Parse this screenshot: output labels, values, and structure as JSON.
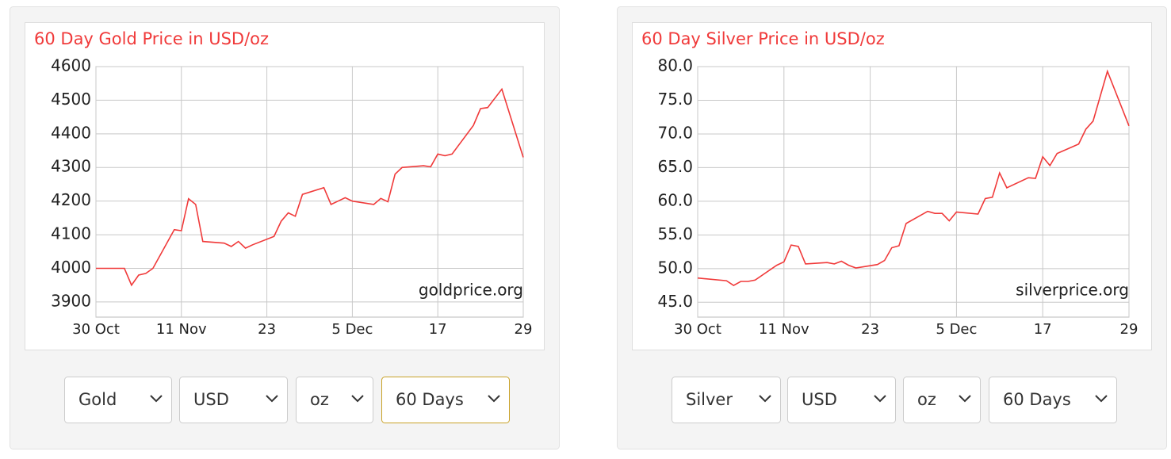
{
  "chart_data": [
    {
      "type": "line",
      "title": "60 Day Gold Price in USD/oz",
      "watermark": "goldprice.org",
      "xlim": [
        "30 Oct",
        "29 Dec"
      ],
      "xticks": [
        "30 Oct",
        "11 Nov",
        {
          "value": "23 Nov",
          "label": "23"
        },
        "5 Dec",
        {
          "value": "17 Dec",
          "label": "17"
        },
        {
          "value": "29 Dec",
          "label": "29"
        }
      ],
      "ylim": [
        3855,
        4600
      ],
      "yticks": [
        3900,
        4000,
        4100,
        4200,
        4300,
        4400,
        4500,
        4600
      ],
      "grid": true,
      "x": [
        "30 Oct",
        "3 Nov",
        "4 Nov",
        "5 Nov",
        "6 Nov",
        "7 Nov",
        "10 Nov",
        "11 Nov",
        "12 Nov",
        "13 Nov",
        "14 Nov",
        "17 Nov",
        "18 Nov",
        "19 Nov",
        "20 Nov",
        "21 Nov",
        "24 Nov",
        "25 Nov",
        "26 Nov",
        "27 Nov",
        "28 Nov",
        "1 Dec",
        "2 Dec",
        "3 Dec",
        "4 Dec",
        "5 Dec",
        "8 Dec",
        "9 Dec",
        "10 Dec",
        "11 Dec",
        "12 Dec",
        "15 Dec",
        "16 Dec",
        "17 Dec",
        "18 Dec",
        "19 Dec",
        "22 Dec",
        "23 Dec",
        "24 Dec",
        "26 Dec",
        "29 Dec"
      ],
      "series": [
        {
          "color": "#f03a3a",
          "values": [
            4000,
            4000,
            3950,
            3980,
            3985,
            4000,
            4115,
            4112,
            4207,
            4190,
            4080,
            4075,
            4065,
            4080,
            4060,
            4070,
            4095,
            4140,
            4165,
            4155,
            4220,
            4240,
            4190,
            4200,
            4210,
            4200,
            4190,
            4208,
            4198,
            4280,
            4300,
            4305,
            4302,
            4340,
            4335,
            4340,
            4425,
            4475,
            4478,
            4533,
            4330
          ]
        }
      ]
    },
    {
      "type": "line",
      "title": "60 Day Silver Price in USD/oz",
      "watermark": "silverprice.org",
      "xlim": [
        "30 Oct",
        "29 Dec"
      ],
      "xticks": [
        "30 Oct",
        "11 Nov",
        {
          "value": "23 Nov",
          "label": "23"
        },
        "5 Dec",
        {
          "value": "17 Dec",
          "label": "17"
        },
        {
          "value": "29 Dec",
          "label": "29"
        }
      ],
      "ylim": [
        42.8,
        80
      ],
      "yticks": [
        {
          "value": 45,
          "label": "45.0"
        },
        {
          "value": 50,
          "label": "50.0"
        },
        {
          "value": 55,
          "label": "55.0"
        },
        {
          "value": 60,
          "label": "60.0"
        },
        {
          "value": 65,
          "label": "65.0"
        },
        {
          "value": 70,
          "label": "70.0"
        },
        {
          "value": 75,
          "label": "75.0"
        },
        {
          "value": 80,
          "label": "80.0"
        }
      ],
      "grid": true,
      "x": [
        "30 Oct",
        "3 Nov",
        "4 Nov",
        "5 Nov",
        "6 Nov",
        "7 Nov",
        "10 Nov",
        "11 Nov",
        "12 Nov",
        "13 Nov",
        "14 Nov",
        "17 Nov",
        "18 Nov",
        "19 Nov",
        "20 Nov",
        "21 Nov",
        "24 Nov",
        "25 Nov",
        "26 Nov",
        "27 Nov",
        "28 Nov",
        "1 Dec",
        "2 Dec",
        "3 Dec",
        "4 Dec",
        "5 Dec",
        "8 Dec",
        "9 Dec",
        "10 Dec",
        "11 Dec",
        "12 Dec",
        "15 Dec",
        "16 Dec",
        "17 Dec",
        "18 Dec",
        "19 Dec",
        "22 Dec",
        "23 Dec",
        "24 Dec",
        "26 Dec",
        "29 Dec"
      ],
      "series": [
        {
          "color": "#f03a3a",
          "values": [
            48.6,
            48.2,
            47.5,
            48.1,
            48.1,
            48.3,
            50.5,
            51.0,
            53.5,
            53.3,
            50.7,
            50.9,
            50.7,
            51.1,
            50.5,
            50.1,
            50.6,
            51.2,
            53.1,
            53.4,
            56.7,
            58.5,
            58.2,
            58.2,
            57.1,
            58.4,
            58.1,
            60.4,
            60.6,
            64.2,
            62.0,
            63.5,
            63.4,
            66.6,
            65.3,
            67.1,
            68.5,
            70.7,
            71.9,
            79.3,
            71.2
          ]
        }
      ]
    }
  ],
  "controls": [
    [
      "Gold",
      "USD",
      "oz",
      "60 Days"
    ],
    [
      "Silver",
      "USD",
      "oz",
      "60 Days"
    ]
  ]
}
